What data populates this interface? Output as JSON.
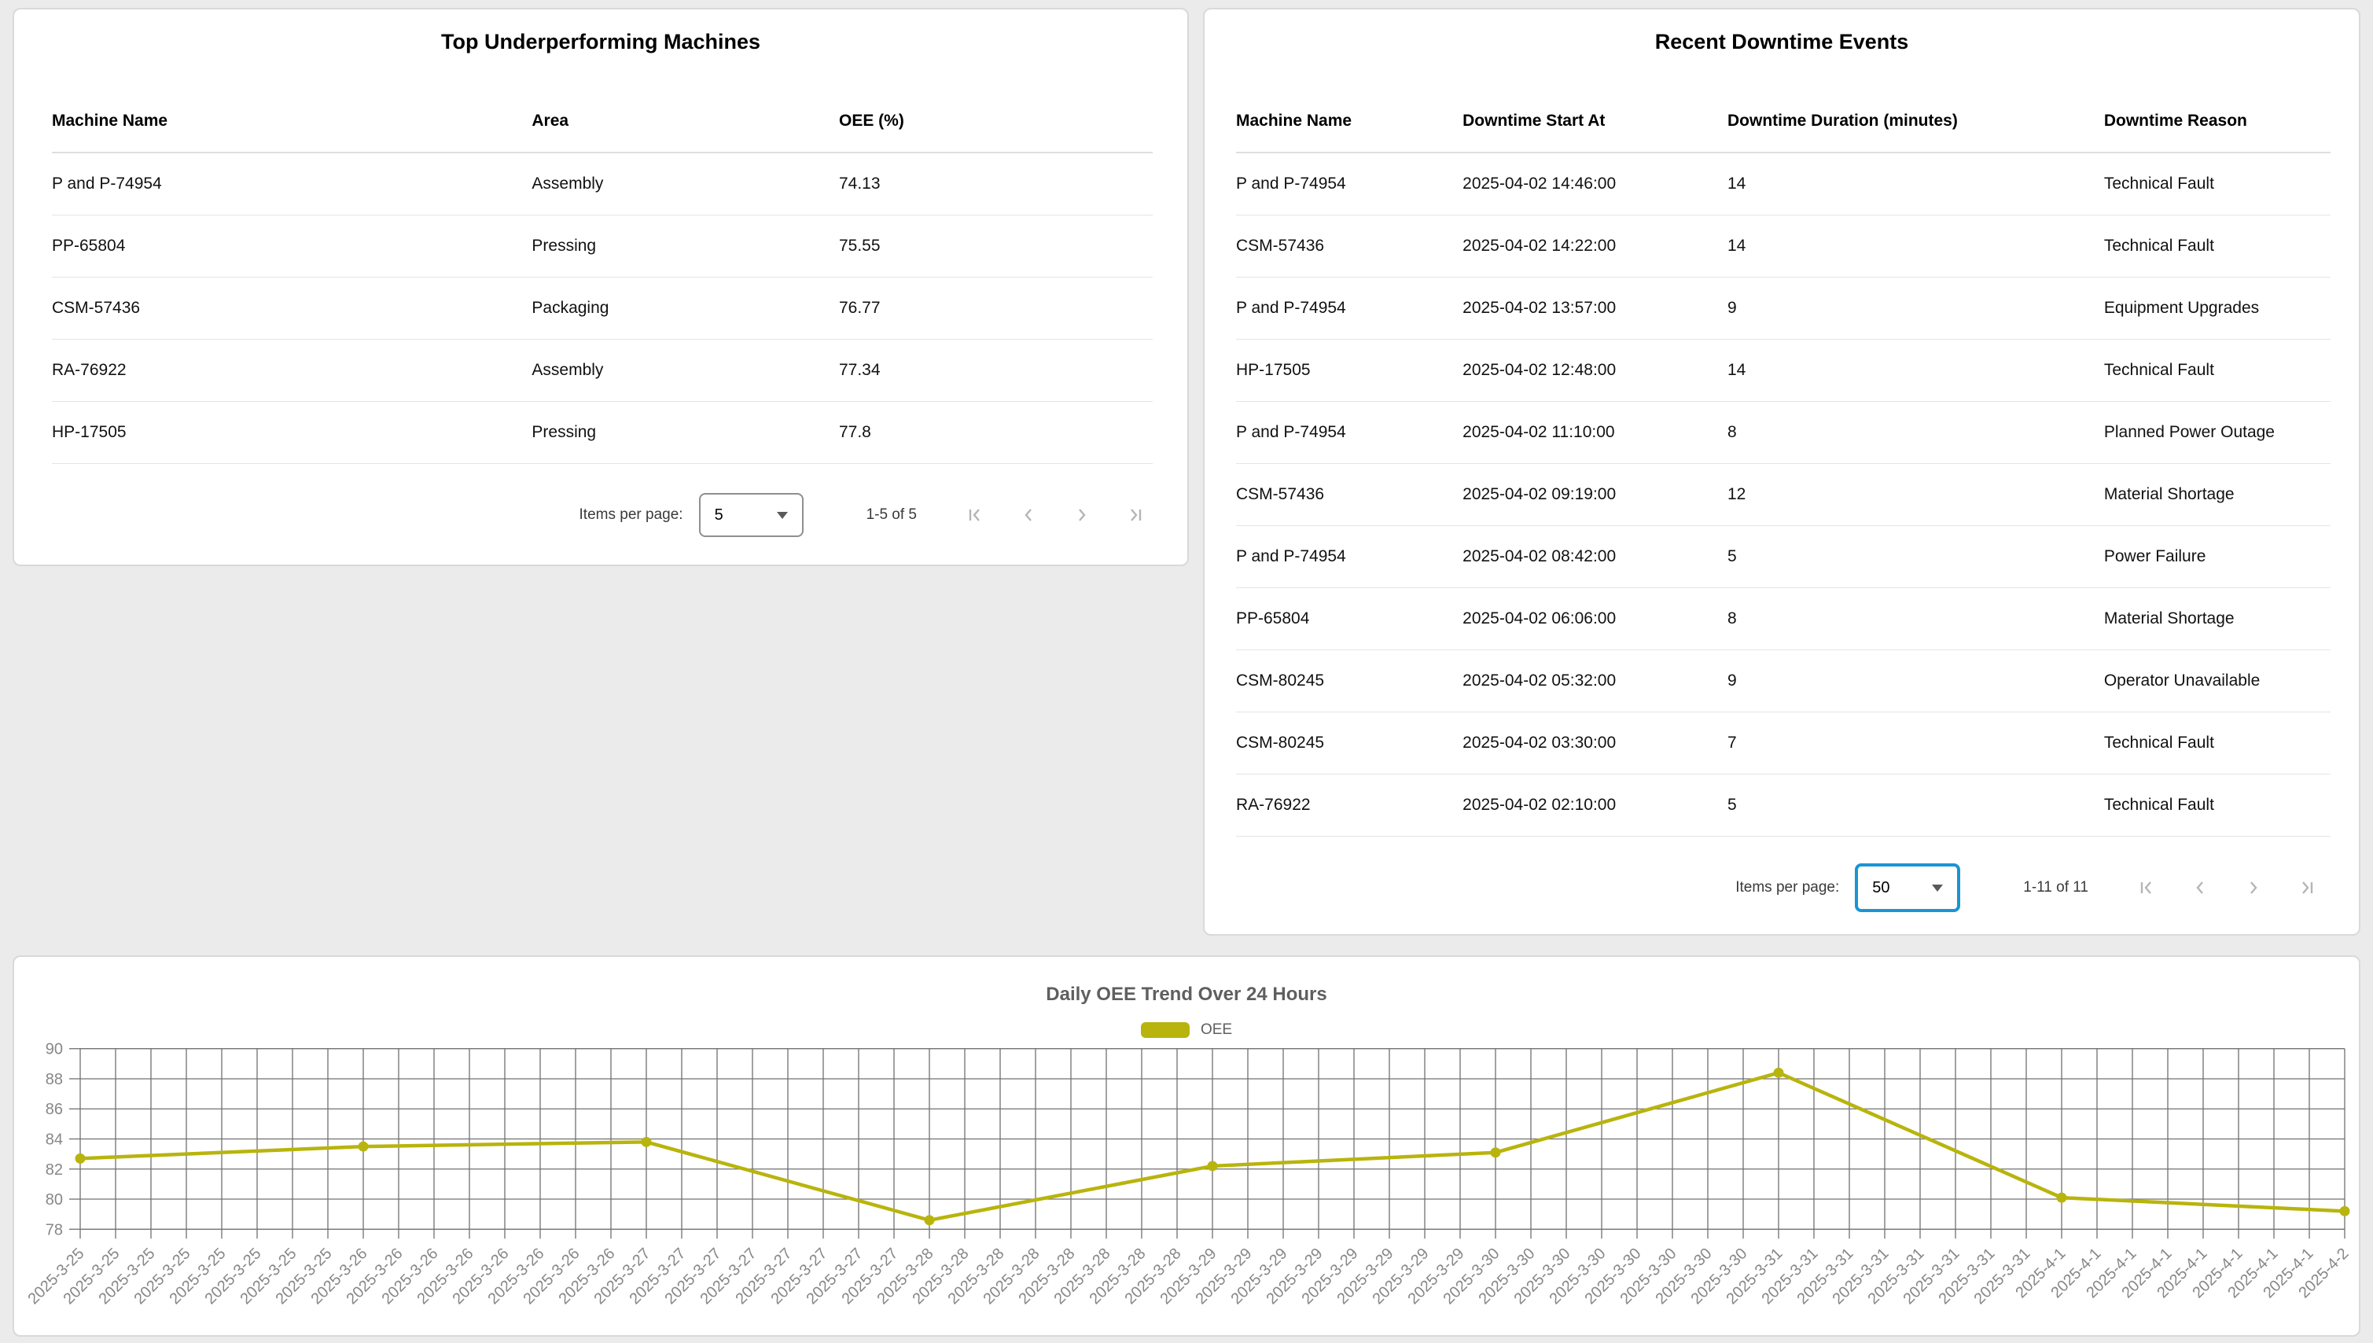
{
  "underperforming": {
    "title": "Top Underperforming Machines",
    "columns": [
      "Machine Name",
      "Area",
      "OEE (%)"
    ],
    "rows": [
      [
        "P and P-74954",
        "Assembly",
        "74.13"
      ],
      [
        "PP-65804",
        "Pressing",
        "75.55"
      ],
      [
        "CSM-57436",
        "Packaging",
        "76.77"
      ],
      [
        "RA-76922",
        "Assembly",
        "77.34"
      ],
      [
        "HP-17505",
        "Pressing",
        "77.8"
      ]
    ],
    "paginator": {
      "items_per_page_label": "Items per page:",
      "page_size": "5",
      "range_label": "1-5 of 5"
    }
  },
  "downtime": {
    "title": "Recent Downtime Events",
    "columns": [
      "Machine Name",
      "Downtime Start At",
      "Downtime Duration (minutes)",
      "Downtime Reason"
    ],
    "rows": [
      [
        "P and P-74954",
        "2025-04-02 14:46:00",
        "14",
        "Technical Fault"
      ],
      [
        "CSM-57436",
        "2025-04-02 14:22:00",
        "14",
        "Technical Fault"
      ],
      [
        "P and P-74954",
        "2025-04-02 13:57:00",
        "9",
        "Equipment Upgrades"
      ],
      [
        "HP-17505",
        "2025-04-02 12:48:00",
        "14",
        "Technical Fault"
      ],
      [
        "P and P-74954",
        "2025-04-02 11:10:00",
        "8",
        "Planned Power Outage"
      ],
      [
        "CSM-57436",
        "2025-04-02 09:19:00",
        "12",
        "Material Shortage"
      ],
      [
        "P and P-74954",
        "2025-04-02 08:42:00",
        "5",
        "Power Failure"
      ],
      [
        "PP-65804",
        "2025-04-02 06:06:00",
        "8",
        "Material Shortage"
      ],
      [
        "CSM-80245",
        "2025-04-02 05:32:00",
        "9",
        "Operator Unavailable"
      ],
      [
        "CSM-80245",
        "2025-04-02 03:30:00",
        "7",
        "Technical Fault"
      ],
      [
        "RA-76922",
        "2025-04-02 02:10:00",
        "5",
        "Technical Fault"
      ]
    ],
    "paginator": {
      "items_per_page_label": "Items per page:",
      "page_size": "50",
      "range_label": "1-11 of 11"
    }
  },
  "chart_data": {
    "type": "line",
    "title": "Daily OEE Trend Over 24 Hours",
    "legend_entries": [
      "OEE"
    ],
    "legend_position": "top-center",
    "grid": true,
    "x_days": [
      "2025-3-25",
      "2025-3-26",
      "2025-3-27",
      "2025-3-28",
      "2025-3-29",
      "2025-3-30",
      "2025-3-31",
      "2025-4-1",
      "2025-4-2"
    ],
    "ticks_per_day": 8,
    "series": [
      {
        "name": "OEE",
        "color": "#b8b40d",
        "values": [
          82.7,
          83.5,
          83.8,
          78.6,
          82.2,
          83.1,
          88.4,
          80.1,
          79.2
        ]
      }
    ],
    "ylim": [
      78,
      90
    ],
    "y_ticks": [
      78,
      80,
      82,
      84,
      86,
      88,
      90
    ],
    "axis_label_color": "#878787",
    "grid_color": "#707070"
  }
}
